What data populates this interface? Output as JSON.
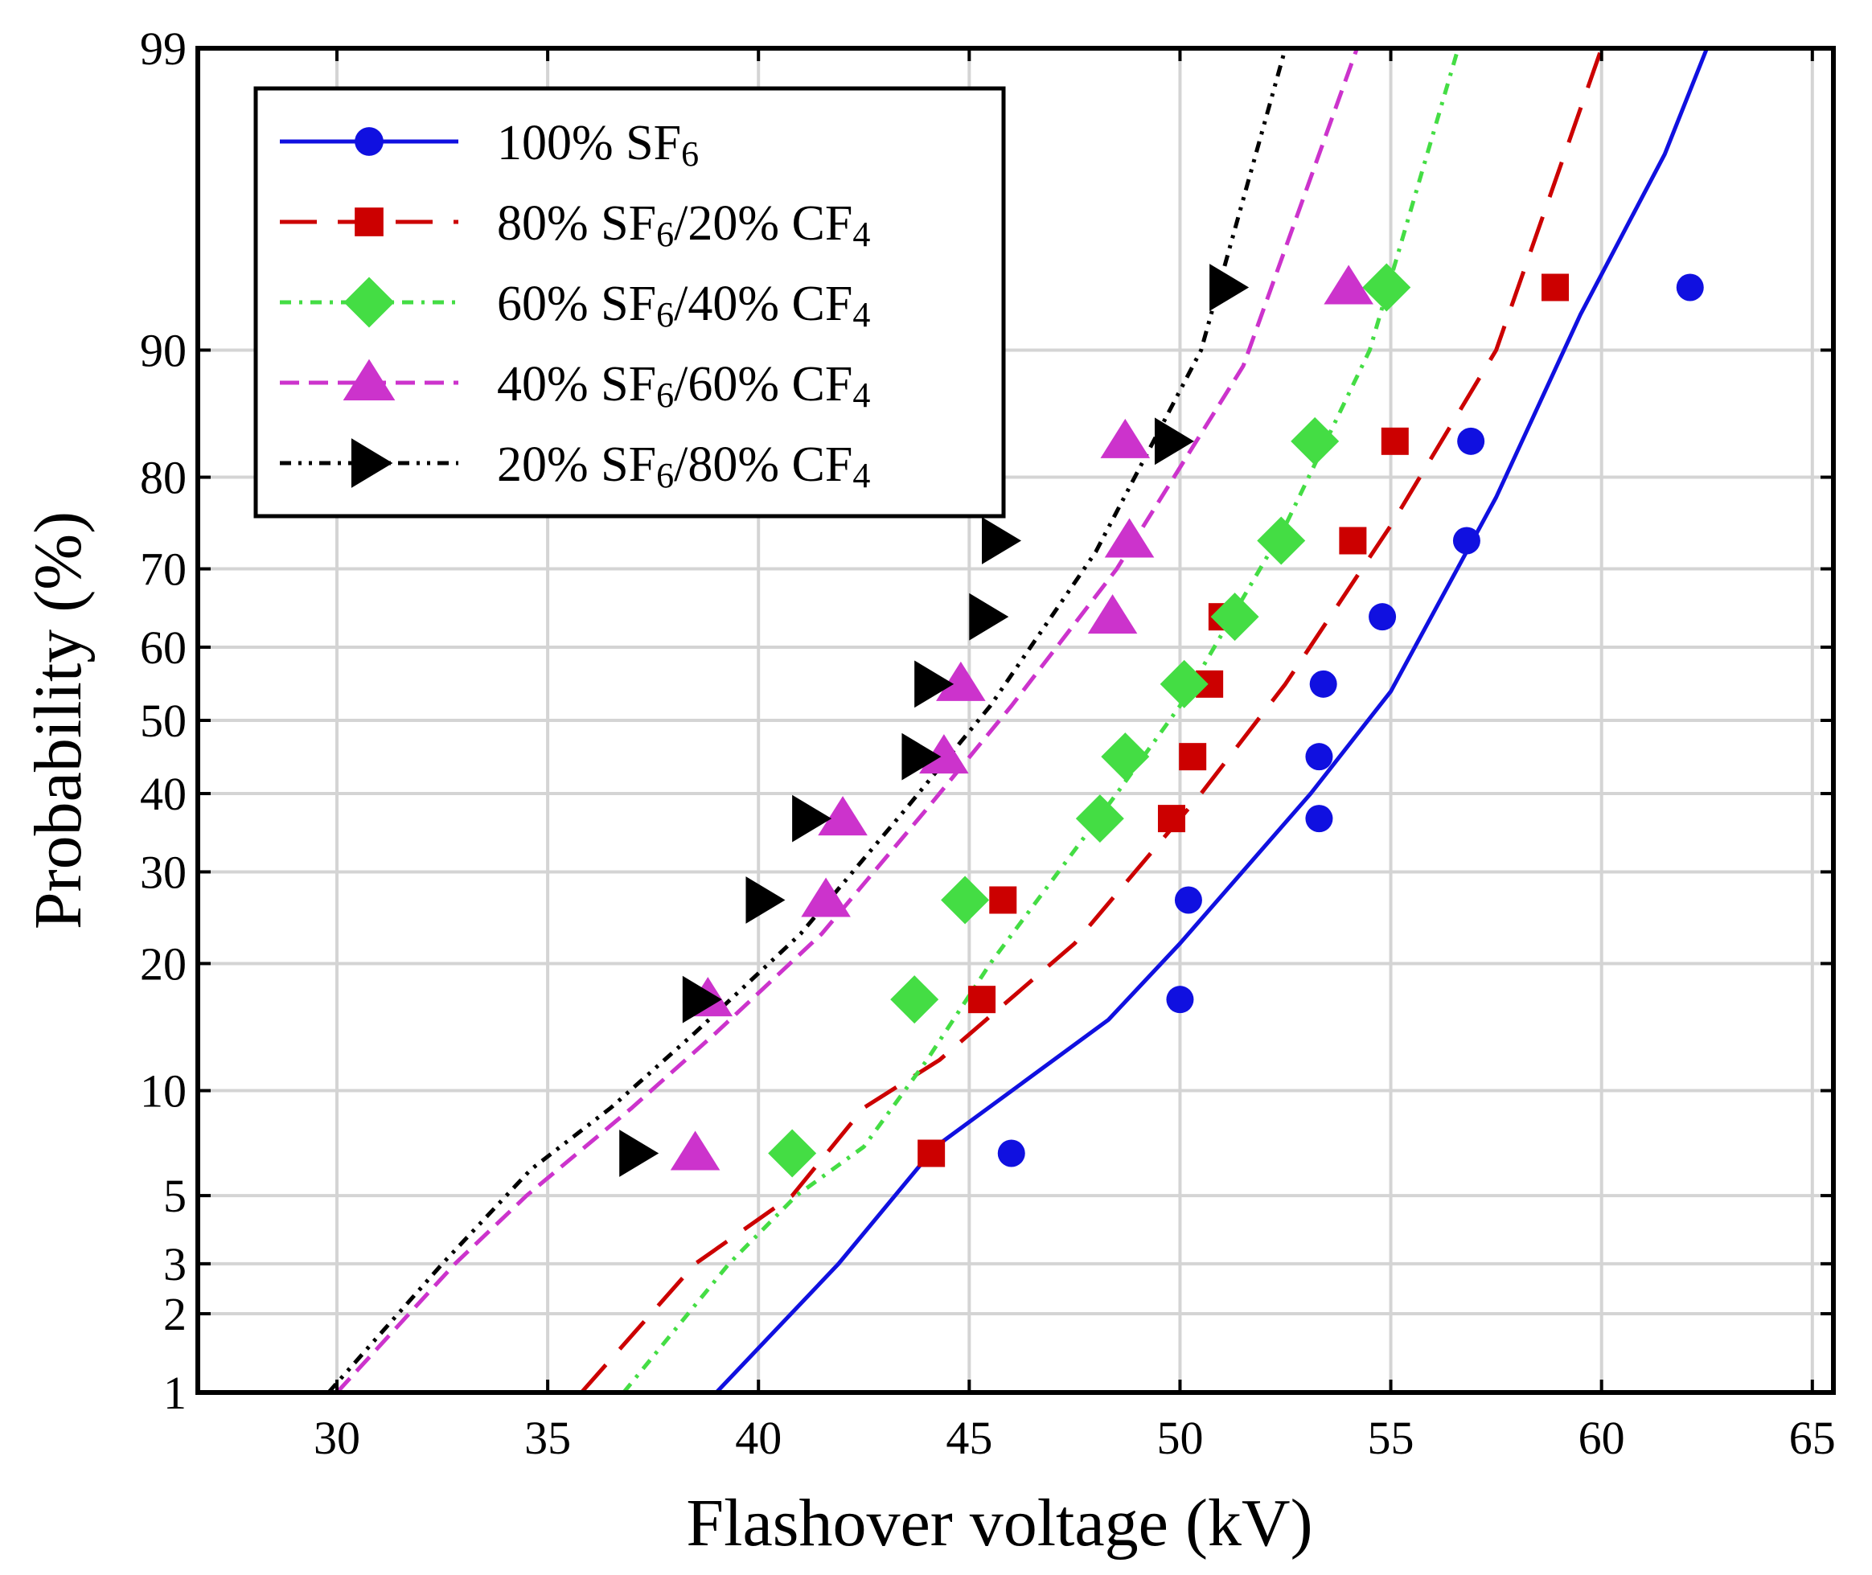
{
  "chart_data": {
    "type": "line",
    "title": "",
    "xlabel": "Flashover voltage (kV)",
    "ylabel": "Probability (%)",
    "xlim": [
      26.7,
      65.5
    ],
    "ylim": [
      1,
      99
    ],
    "yscale": "normal-probability",
    "grid": true,
    "legend_position": "top-left",
    "x_ticks": [
      30,
      35,
      40,
      45,
      50,
      55,
      60,
      65
    ],
    "y_ticks": [
      1,
      2,
      3,
      5,
      10,
      20,
      30,
      40,
      50,
      60,
      70,
      80,
      90,
      99
    ],
    "series": [
      {
        "name": "100% SF6",
        "label_parts": [
          {
            "t": "100% SF"
          },
          {
            "t": "6",
            "sub": true
          }
        ],
        "color": "#1010e0",
        "marker": "circle",
        "dash": "solid",
        "points": [
          [
            46.0,
            6.7
          ],
          [
            50.0,
            16.7
          ],
          [
            50.2,
            26.7
          ],
          [
            53.3,
            36.7
          ],
          [
            53.3,
            45.0
          ],
          [
            53.4,
            55.0
          ],
          [
            54.8,
            64.0
          ],
          [
            56.8,
            73.3
          ],
          [
            56.9,
            83.3
          ],
          [
            62.1,
            93.3
          ]
        ],
        "fit": [
          [
            39.0,
            1
          ],
          [
            41.9,
            3
          ],
          [
            44.2,
            7
          ],
          [
            48.3,
            15
          ],
          [
            50.0,
            22
          ],
          [
            53.1,
            40
          ],
          [
            55.0,
            54
          ],
          [
            57.5,
            78
          ],
          [
            59.5,
            92
          ],
          [
            61.5,
            97.5
          ],
          [
            62.5,
            99
          ]
        ]
      },
      {
        "name": "80% SF6/20% CF4",
        "label_parts": [
          {
            "t": "80% SF"
          },
          {
            "t": "6",
            "sub": true
          },
          {
            "t": "/20% CF"
          },
          {
            "t": "4",
            "sub": true
          }
        ],
        "color": "#cc0000",
        "marker": "square",
        "dash": "long-dash",
        "points": [
          [
            44.1,
            6.7
          ],
          [
            45.3,
            16.7
          ],
          [
            45.8,
            26.7
          ],
          [
            49.8,
            36.7
          ],
          [
            50.3,
            45.0
          ],
          [
            50.7,
            55.0
          ],
          [
            51.0,
            64.0
          ],
          [
            54.1,
            73.3
          ],
          [
            55.1,
            83.3
          ],
          [
            58.9,
            93.3
          ]
        ],
        "fit": [
          [
            35.8,
            1
          ],
          [
            38.5,
            3
          ],
          [
            40.8,
            5
          ],
          [
            42.5,
            9
          ],
          [
            44.3,
            12
          ],
          [
            47.5,
            22
          ],
          [
            50.5,
            40
          ],
          [
            52.5,
            55
          ],
          [
            55.0,
            75
          ],
          [
            57.5,
            90
          ],
          [
            60.0,
            99
          ]
        ]
      },
      {
        "name": "60% SF6/40% CF4",
        "label_parts": [
          {
            "t": "60% SF"
          },
          {
            "t": "6",
            "sub": true
          },
          {
            "t": "/40% CF"
          },
          {
            "t": "4",
            "sub": true
          }
        ],
        "color": "#44dd44",
        "marker": "diamond",
        "dash": "dash-dot",
        "points": [
          [
            40.8,
            6.7
          ],
          [
            43.7,
            16.7
          ],
          [
            44.9,
            26.7
          ],
          [
            48.1,
            36.7
          ],
          [
            48.7,
            45.0
          ],
          [
            50.1,
            55.0
          ],
          [
            51.3,
            64.0
          ],
          [
            52.4,
            73.3
          ],
          [
            53.2,
            83.3
          ],
          [
            54.9,
            93.3
          ]
        ],
        "fit": [
          [
            36.8,
            1
          ],
          [
            39.3,
            3
          ],
          [
            40.9,
            5
          ],
          [
            42.5,
            7
          ],
          [
            44.0,
            12
          ],
          [
            45.5,
            20
          ],
          [
            48.5,
            40
          ],
          [
            50.0,
            52
          ],
          [
            52.5,
            75
          ],
          [
            54.5,
            90
          ],
          [
            56.6,
            99
          ]
        ]
      },
      {
        "name": "40% SF6/60% CF4",
        "label_parts": [
          {
            "t": "40% SF"
          },
          {
            "t": "6",
            "sub": true
          },
          {
            "t": "/60% CF"
          },
          {
            "t": "4",
            "sub": true
          }
        ],
        "color": "#cc33cc",
        "marker": "triangle-up",
        "dash": "short-dash",
        "points": [
          [
            38.5,
            6.7
          ],
          [
            38.8,
            16.7
          ],
          [
            41.6,
            26.7
          ],
          [
            42.0,
            36.7
          ],
          [
            44.4,
            45.0
          ],
          [
            44.8,
            55.0
          ],
          [
            48.4,
            64.0
          ],
          [
            48.8,
            73.3
          ],
          [
            48.7,
            83.3
          ],
          [
            54.0,
            93.3
          ]
        ],
        "fit": [
          [
            30.0,
            1
          ],
          [
            32.8,
            3
          ],
          [
            34.5,
            5
          ],
          [
            37.0,
            9
          ],
          [
            39.0,
            14
          ],
          [
            41.5,
            23
          ],
          [
            44.0,
            38
          ],
          [
            46.0,
            52
          ],
          [
            48.5,
            70
          ],
          [
            51.5,
            89
          ],
          [
            54.2,
            99
          ]
        ]
      },
      {
        "name": "20% SF6/80% CF4",
        "label_parts": [
          {
            "t": "20% SF"
          },
          {
            "t": "6",
            "sub": true
          },
          {
            "t": "/80% CF"
          },
          {
            "t": "4",
            "sub": true
          }
        ],
        "color": "#000000",
        "marker": "triangle-right",
        "dash": "dash-dot-dot",
        "points": [
          [
            37.1,
            6.7
          ],
          [
            38.6,
            16.7
          ],
          [
            40.1,
            26.7
          ],
          [
            41.2,
            36.7
          ],
          [
            43.8,
            45.0
          ],
          [
            44.1,
            55.0
          ],
          [
            45.4,
            64.0
          ],
          [
            45.7,
            73.3
          ],
          [
            49.8,
            83.3
          ],
          [
            51.1,
            93.3
          ]
        ],
        "fit": [
          [
            29.8,
            1
          ],
          [
            32.5,
            3
          ],
          [
            34.6,
            6
          ],
          [
            36.5,
            9
          ],
          [
            38.5,
            14
          ],
          [
            41.0,
            23
          ],
          [
            43.5,
            38
          ],
          [
            45.5,
            52
          ],
          [
            48.0,
            72
          ],
          [
            50.5,
            90
          ],
          [
            52.5,
            99
          ]
        ]
      }
    ]
  }
}
